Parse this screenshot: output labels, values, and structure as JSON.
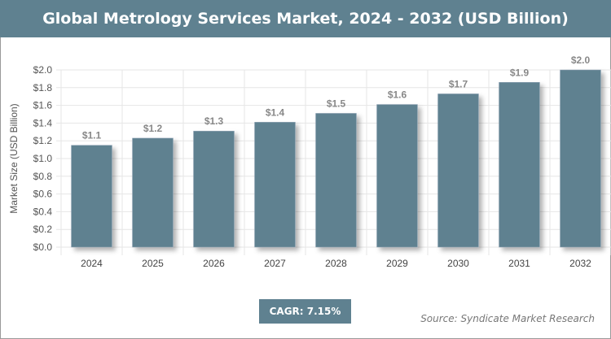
{
  "chart_data": {
    "type": "bar",
    "title": "Global Metrology Services Market, 2024 - 2032 (USD Billion)",
    "xlabel": "",
    "ylabel": "Market Size (USD Billion)",
    "categories": [
      "2024",
      "2025",
      "2026",
      "2027",
      "2028",
      "2029",
      "2030",
      "2031",
      "2032"
    ],
    "values": [
      1.15,
      1.23,
      1.31,
      1.41,
      1.51,
      1.61,
      1.73,
      1.86,
      2.0
    ],
    "data_labels": [
      "$1.1",
      "$1.2",
      "$1.3",
      "$1.4",
      "$1.5",
      "$1.6",
      "$1.7",
      "$1.9",
      "$2.0"
    ],
    "ylim": [
      0,
      2.0
    ],
    "yticks": [
      "$0.0",
      "$0.2",
      "$0.4",
      "$0.6",
      "$0.8",
      "$1.0",
      "$1.2",
      "$1.4",
      "$1.6",
      "$1.8",
      "$2.0"
    ],
    "grid": true,
    "bar_color": "#5f8190"
  },
  "cagr": "CAGR: 7.15%",
  "source": "Source: Syndicate Market Research"
}
